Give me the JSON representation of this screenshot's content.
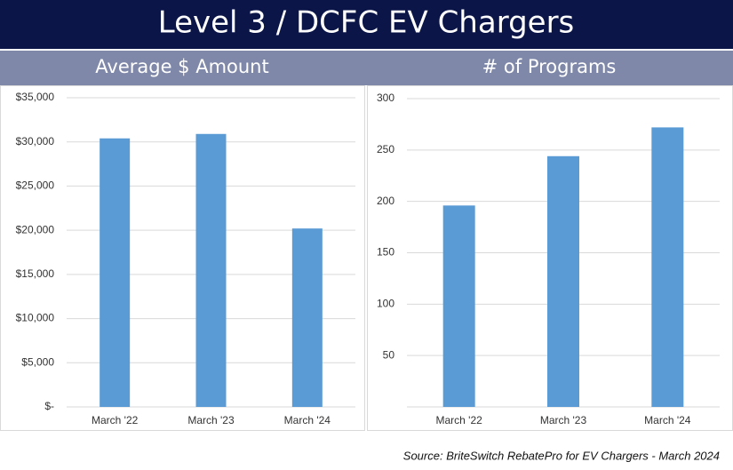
{
  "title": "Level 3 / DCFC EV Chargers",
  "source": "Source: BriteSwitch RebatePro for EV Chargers - March 2024",
  "chart_data": [
    {
      "type": "bar",
      "title": "Average $ Amount",
      "categories": [
        "March '22",
        "March '23",
        "March '24"
      ],
      "values": [
        30400,
        30900,
        20200
      ],
      "color": "#5b9bd5",
      "ylim": [
        0,
        35000
      ],
      "yticks": [
        {
          "value": 0,
          "label": "$-"
        },
        {
          "value": 5000,
          "label": "$5,000"
        },
        {
          "value": 10000,
          "label": "$10,000"
        },
        {
          "value": 15000,
          "label": "$15,000"
        },
        {
          "value": 20000,
          "label": "$20,000"
        },
        {
          "value": 25000,
          "label": "$25,000"
        },
        {
          "value": 30000,
          "label": "$30,000"
        },
        {
          "value": 35000,
          "label": "$35,000"
        }
      ],
      "grid": true
    },
    {
      "type": "bar",
      "title": "# of Programs",
      "categories": [
        "March '22",
        "March '23",
        "March '24"
      ],
      "values": [
        196,
        244,
        272
      ],
      "color": "#5b9bd5",
      "ylim": [
        0,
        300
      ],
      "yticks": [
        50,
        100,
        150,
        200,
        250,
        300
      ],
      "grid": true
    }
  ]
}
